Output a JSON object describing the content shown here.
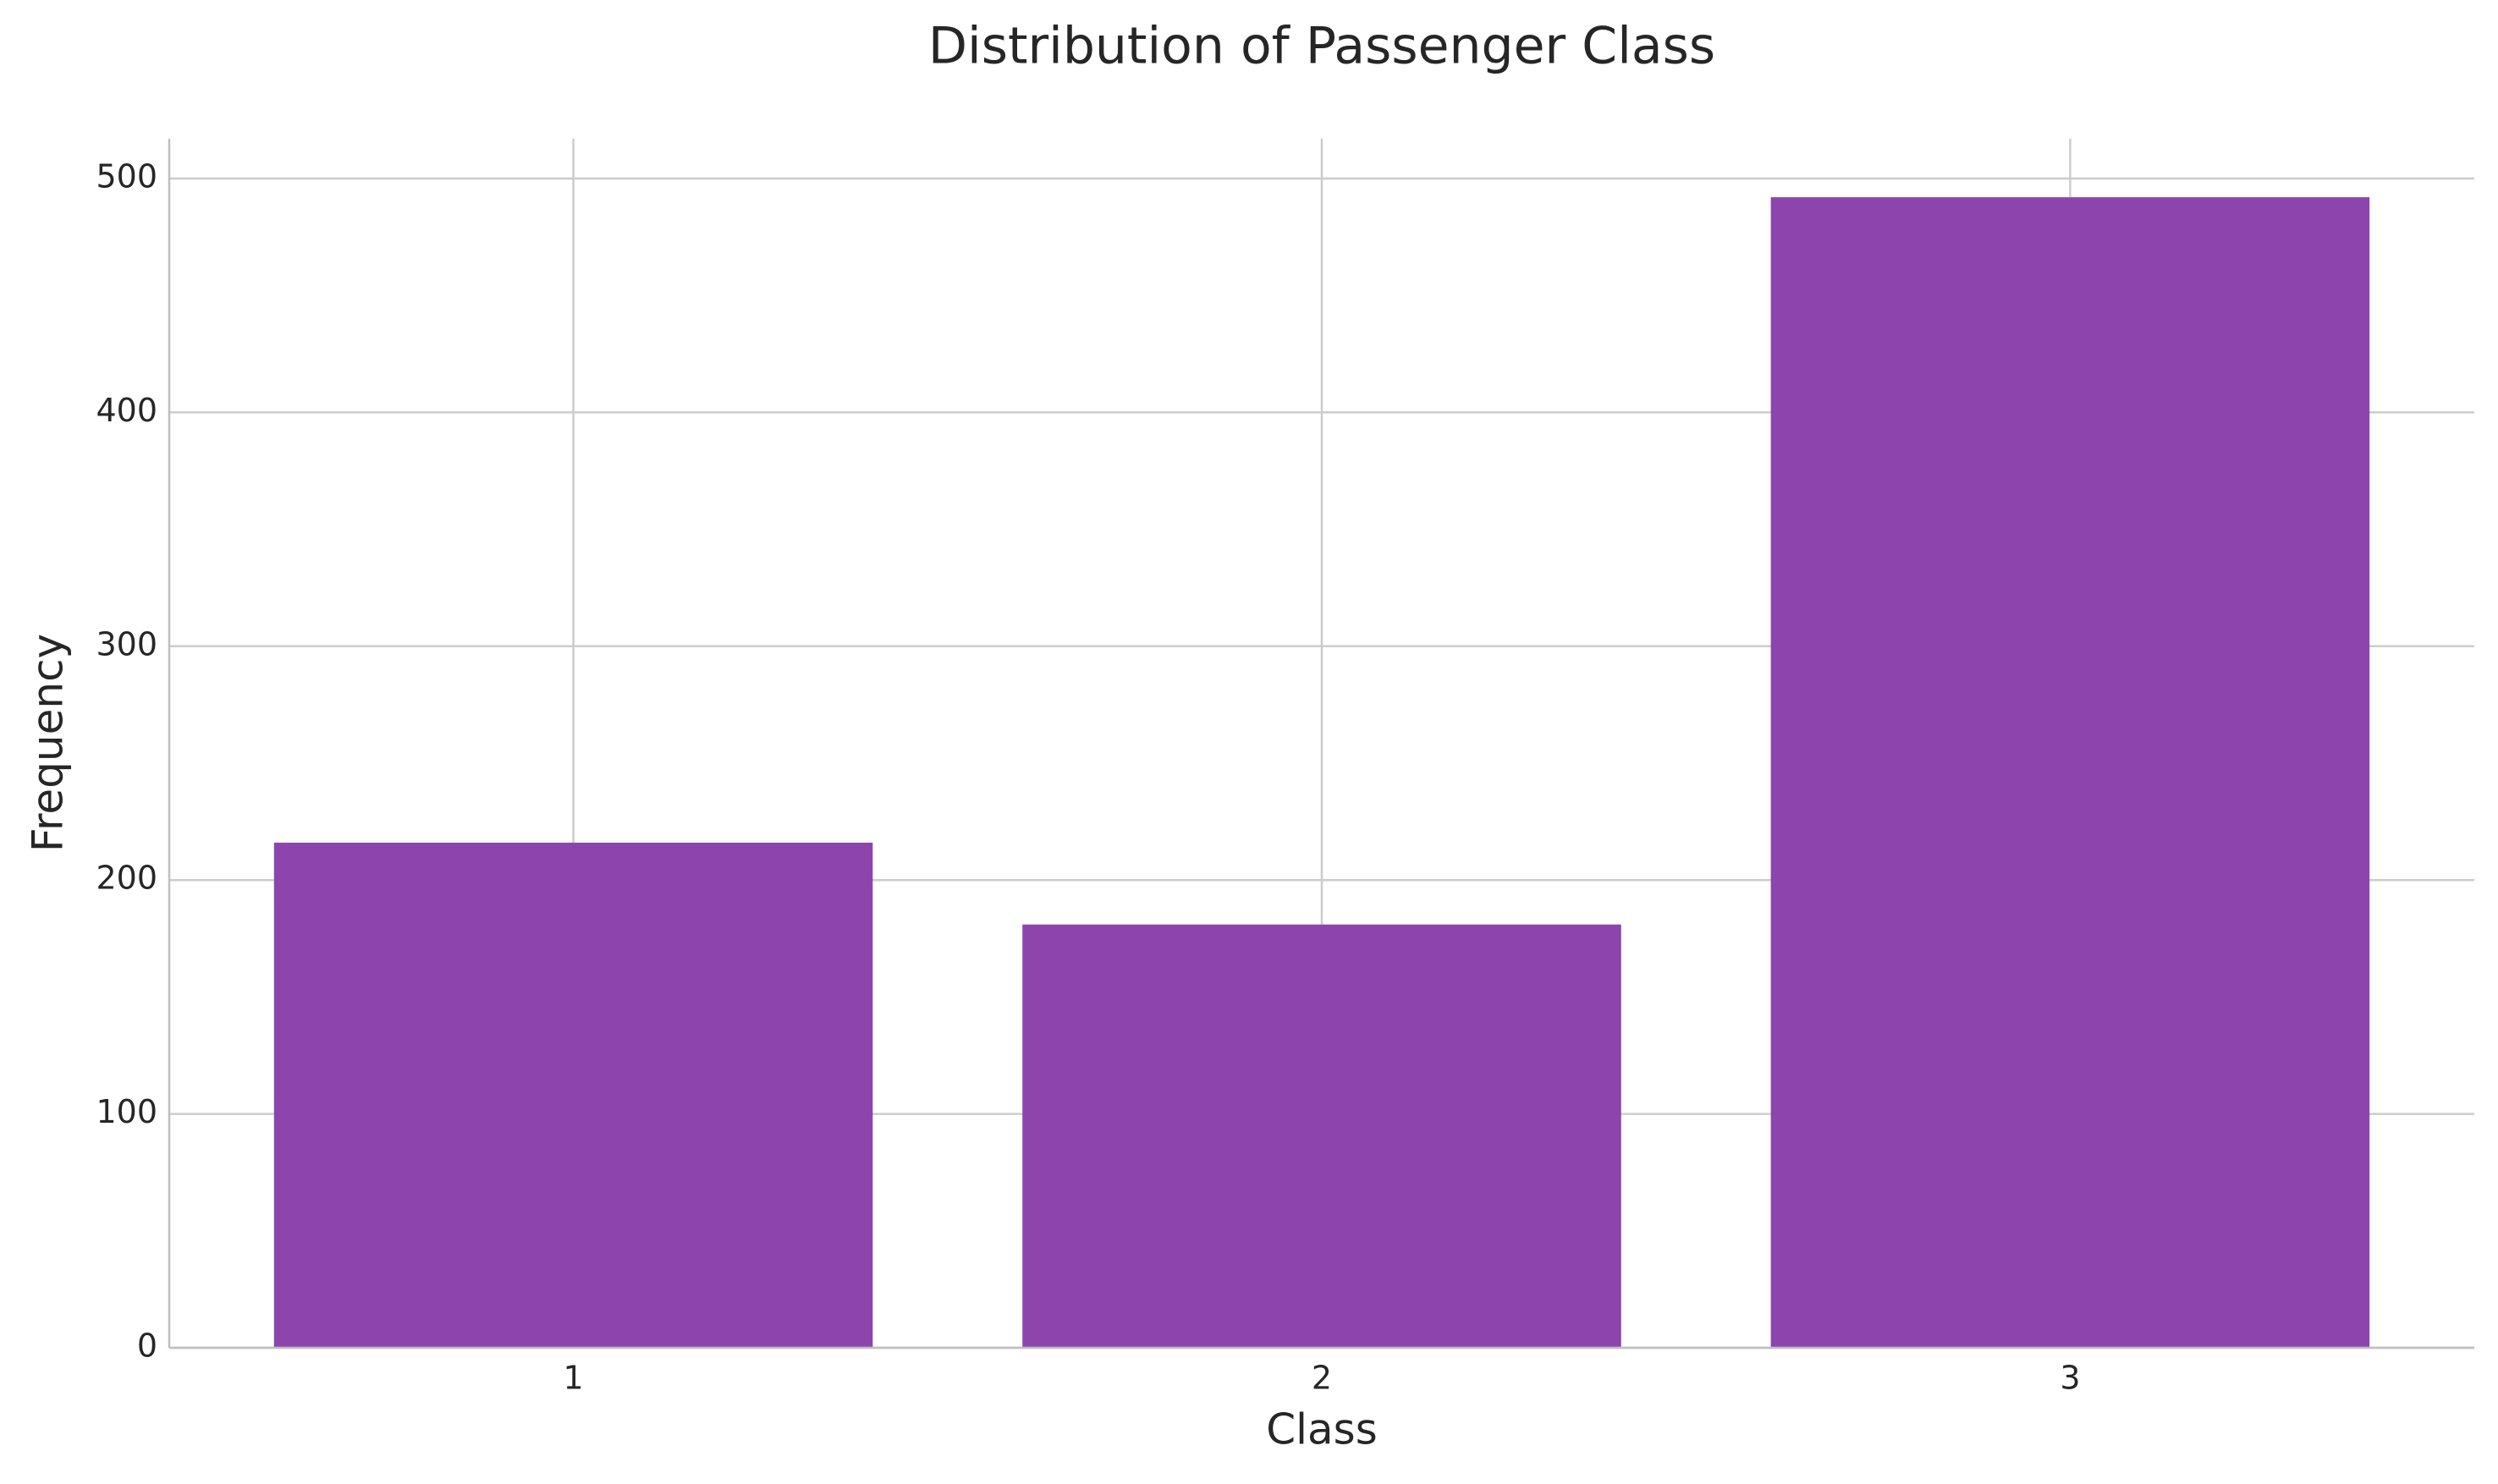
{
  "chart_data": {
    "type": "bar",
    "title": "Distribution of Passenger Class",
    "x_label": "Class",
    "y_label": "Frequency",
    "categories": [
      "1",
      "2",
      "3"
    ],
    "values": [
      216,
      181,
      492
    ],
    "color": "#8e44ad",
    "ylim": [
      0,
      517
    ],
    "yticks": [
      0,
      100,
      200,
      300,
      400,
      500
    ],
    "grid": true
  }
}
